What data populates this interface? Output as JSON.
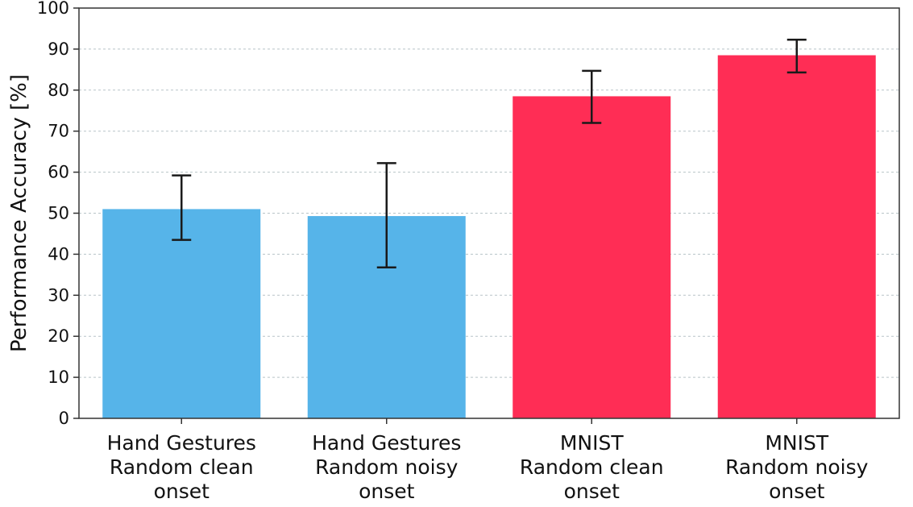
{
  "chart_data": {
    "type": "bar",
    "categories": [
      [
        "Hand Gestures",
        "Random clean",
        "onset"
      ],
      [
        "Hand Gestures",
        "Random noisy",
        "onset"
      ],
      [
        "MNIST",
        "Random clean",
        "onset"
      ],
      [
        "MNIST",
        "Random noisy",
        "onset"
      ]
    ],
    "values": [
      51,
      49.3,
      78.5,
      88.5
    ],
    "error_low": [
      43.5,
      36.8,
      72.0,
      84.3
    ],
    "error_high": [
      59.2,
      62.2,
      84.7,
      92.3
    ],
    "bar_colors": [
      "#56b4e9",
      "#56b4e9",
      "#ff2d55",
      "#ff2d55"
    ],
    "ylabel": "Performance Accuracy [%]",
    "xlabel": "",
    "title": "",
    "ylim": [
      0,
      100
    ],
    "yticks": [
      0,
      10,
      20,
      30,
      40,
      50,
      60,
      70,
      80,
      90,
      100
    ],
    "grid": "horizontal-dashed",
    "legend": "none"
  }
}
